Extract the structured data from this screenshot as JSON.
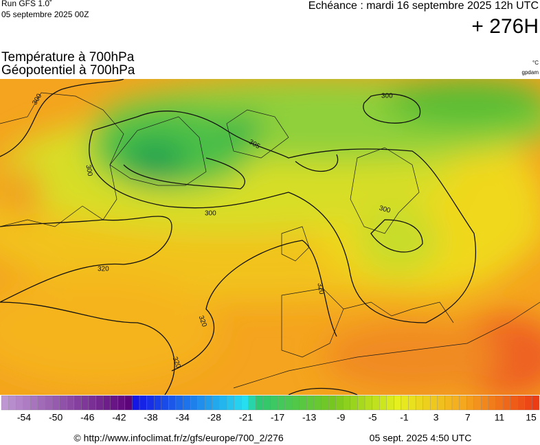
{
  "header": {
    "run": "Run GFS 1.0˚",
    "run_date": "05 septembre 2025 00Z",
    "forecast": "Echéance : mardi 16 septembre 2025 12h UTC",
    "lead": "+ 276H"
  },
  "titles": {
    "temperature": "Température à 700hPa",
    "geopotential": "Géopotentiel à 700hPa",
    "temp_unit": "°C",
    "geo_unit": "gpdam"
  },
  "contour_labels": [
    300,
    300,
    305,
    300,
    300,
    300,
    320,
    320,
    320,
    320
  ],
  "color_scale": {
    "labels": [
      -54,
      -50,
      -46,
      -42,
      -38,
      -34,
      -28,
      -21,
      -17,
      -13,
      -9,
      -5,
      -1,
      3,
      7,
      11,
      15
    ]
  },
  "footer": {
    "url": "© http://www.infoclimat.fr/z/gfs/europe/700_2/276",
    "generated": "05 sept. 2025  4:50 UTC"
  }
}
